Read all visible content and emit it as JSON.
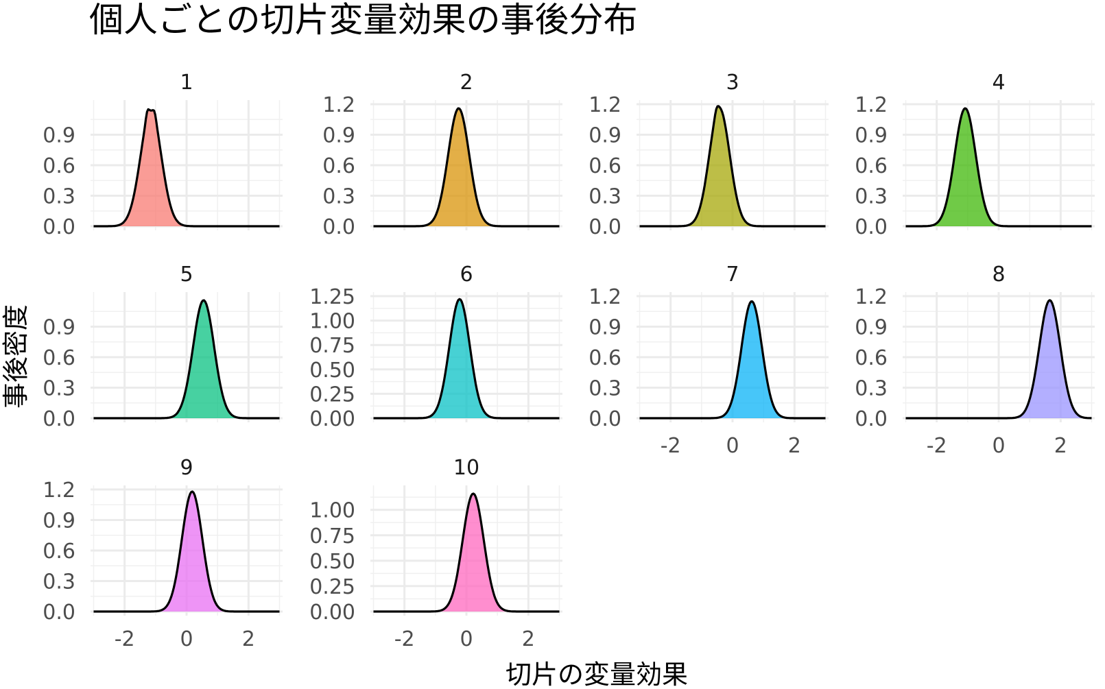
{
  "chart_data": {
    "type": "area",
    "title": "個人ごとの切片変量効果の事後分布",
    "xlabel": "切片の変量効果",
    "ylabel": "事後密度",
    "xlim": [
      -3.1,
      3.1
    ],
    "x_ticks": [
      -2,
      0,
      2
    ],
    "grid": true,
    "legend": "none",
    "panels": [
      {
        "label": "1",
        "color": "#F8766D",
        "mean": -1.15,
        "sd": 0.34,
        "peak": 1.13,
        "bumps": [
          {
            "offset": -0.12,
            "amp": 0.07,
            "width": 0.05
          },
          {
            "offset": 0.12,
            "amp": 0.06,
            "width": 0.05
          }
        ],
        "ylim": [
          0,
          1.2
        ],
        "y_ticks": [
          0.0,
          0.3,
          0.6,
          0.9
        ],
        "y_tick_labels": [
          "0.0",
          "0.3",
          "0.6",
          "0.9"
        ]
      },
      {
        "label": "2",
        "color": "#D89000",
        "mean": -0.25,
        "sd": 0.34,
        "peak": 1.16,
        "bumps": [],
        "ylim": [
          0,
          1.2
        ],
        "y_ticks": [
          0.0,
          0.3,
          0.6,
          0.9,
          1.2
        ],
        "y_tick_labels": [
          "0.0",
          "0.3",
          "0.6",
          "0.9",
          "1.2"
        ]
      },
      {
        "label": "3",
        "color": "#A3A500",
        "mean": -0.42,
        "sd": 0.33,
        "peak": 1.16,
        "bumps": [
          {
            "offset": -0.1,
            "amp": 0.05,
            "width": 0.06
          }
        ],
        "ylim": [
          0,
          1.2
        ],
        "y_ticks": [
          0.0,
          0.3,
          0.6,
          0.9,
          1.2
        ],
        "y_tick_labels": [
          "0.0",
          "0.3",
          "0.6",
          "0.9",
          "1.2"
        ]
      },
      {
        "label": "4",
        "color": "#39B600",
        "mean": -1.08,
        "sd": 0.34,
        "peak": 1.16,
        "bumps": [],
        "ylim": [
          0,
          1.2
        ],
        "y_ticks": [
          0.0,
          0.3,
          0.6,
          0.9,
          1.2
        ],
        "y_tick_labels": [
          "0.0",
          "0.3",
          "0.6",
          "0.9",
          "1.2"
        ]
      },
      {
        "label": "5",
        "color": "#00BF7D",
        "mean": 0.55,
        "sd": 0.34,
        "peak": 1.16,
        "bumps": [],
        "ylim": [
          0,
          1.2
        ],
        "y_ticks": [
          0.0,
          0.3,
          0.6,
          0.9
        ],
        "y_tick_labels": [
          "0.0",
          "0.3",
          "0.6",
          "0.9"
        ]
      },
      {
        "label": "6",
        "color": "#00BFC4",
        "mean": -0.22,
        "sd": 0.33,
        "peak": 1.22,
        "bumps": [],
        "ylim": [
          0,
          1.25
        ],
        "y_ticks": [
          0.0,
          0.25,
          0.5,
          0.75,
          1.0,
          1.25
        ],
        "y_tick_labels": [
          "0.00",
          "0.25",
          "0.50",
          "0.75",
          "1.00",
          "1.25"
        ]
      },
      {
        "label": "7",
        "color": "#00B0F6",
        "mean": 0.62,
        "sd": 0.33,
        "peak": 1.15,
        "bumps": [],
        "ylim": [
          0,
          1.2
        ],
        "y_ticks": [
          0.0,
          0.3,
          0.6,
          0.9,
          1.2
        ],
        "y_tick_labels": [
          "0.0",
          "0.3",
          "0.6",
          "0.9",
          "1.2"
        ]
      },
      {
        "label": "8",
        "color": "#9590FF",
        "mean": 1.65,
        "sd": 0.34,
        "peak": 1.16,
        "bumps": [],
        "ylim": [
          0,
          1.2
        ],
        "y_ticks": [
          0.0,
          0.3,
          0.6,
          0.9,
          1.2
        ],
        "y_tick_labels": [
          "0.0",
          "0.3",
          "0.6",
          "0.9",
          "1.2"
        ]
      },
      {
        "label": "9",
        "color": "#E76BF3",
        "mean": 0.18,
        "sd": 0.33,
        "peak": 1.18,
        "bumps": [],
        "ylim": [
          0,
          1.2
        ],
        "y_ticks": [
          0.0,
          0.3,
          0.6,
          0.9,
          1.2
        ],
        "y_tick_labels": [
          "0.0",
          "0.3",
          "0.6",
          "0.9",
          "1.2"
        ]
      },
      {
        "label": "10",
        "color": "#FF62BC",
        "mean": 0.22,
        "sd": 0.34,
        "peak": 1.16,
        "bumps": [],
        "ylim": [
          0,
          1.2
        ],
        "y_ticks": [
          0.0,
          0.25,
          0.5,
          0.75,
          1.0
        ],
        "y_tick_labels": [
          "0.00",
          "0.25",
          "0.50",
          "0.75",
          "1.00"
        ]
      }
    ]
  }
}
